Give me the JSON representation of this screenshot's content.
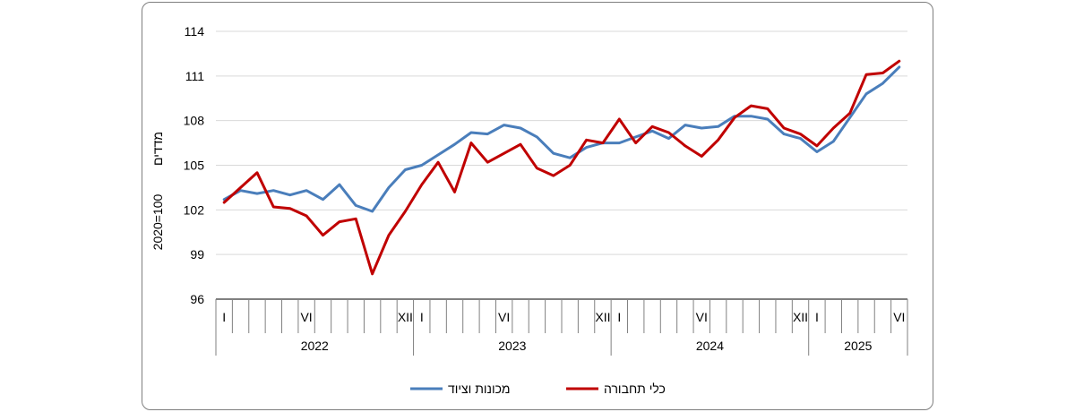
{
  "chart_data": {
    "type": "line",
    "ylabel_index": "מדדים",
    "ylabel_base": "2020=100",
    "ylim": [
      96,
      114
    ],
    "yticks": [
      96,
      99,
      102,
      105,
      108,
      111,
      114
    ],
    "grid": true,
    "legend_position": "bottom",
    "years": [
      {
        "label": "2022",
        "months": [
          "I",
          "VI",
          "XII"
        ]
      },
      {
        "label": "2023",
        "months": [
          "I",
          "VI",
          "XII"
        ]
      },
      {
        "label": "2024",
        "months": [
          "I",
          "VI",
          "XII"
        ]
      },
      {
        "label": "2025",
        "months": [
          "I",
          "VI"
        ]
      }
    ],
    "series": [
      {
        "name": "מכונות וציוד",
        "color": "#4a7ebb",
        "values": [
          102.7,
          103.3,
          103.1,
          103.3,
          103.0,
          103.3,
          102.7,
          103.7,
          102.3,
          101.9,
          103.5,
          104.7,
          105.0,
          105.7,
          106.4,
          107.2,
          107.1,
          107.7,
          107.5,
          106.9,
          105.8,
          105.5,
          106.2,
          106.5,
          106.5,
          106.9,
          107.3,
          106.8,
          107.7,
          107.5,
          107.6,
          108.3,
          108.3,
          108.1,
          107.1,
          106.8,
          105.9,
          106.6,
          108.2,
          109.8,
          110.5,
          111.6
        ]
      },
      {
        "name": "כלי תחבורה",
        "color": "#c00000",
        "values": [
          102.5,
          103.5,
          104.5,
          102.2,
          102.1,
          101.6,
          100.3,
          101.2,
          101.4,
          97.7,
          100.3,
          101.9,
          103.7,
          105.2,
          103.2,
          106.5,
          105.2,
          105.8,
          106.4,
          104.8,
          104.3,
          105.0,
          106.7,
          106.5,
          108.1,
          106.5,
          107.6,
          107.2,
          106.3,
          105.6,
          106.7,
          108.2,
          109.0,
          108.8,
          107.5,
          107.1,
          106.3,
          107.5,
          108.5,
          111.1,
          111.2,
          112.0
        ]
      }
    ]
  }
}
